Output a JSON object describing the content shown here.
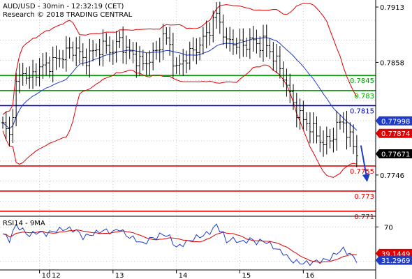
{
  "chart_data": [
    {
      "type": "candlestick",
      "title": "AUD/USD - 30min - 12:32:19 (CET)",
      "subtitle": "Research © 2018 TRADING CENTRAL",
      "ylim": [
        0.7705,
        0.792
      ],
      "y_ticks": [
        {
          "value": 0.7913,
          "label": "0.7913"
        },
        {
          "value": 0.7858,
          "label": "0.7858"
        },
        {
          "value": 0.7746,
          "label": "0.7746"
        }
      ],
      "x_ticks": [
        "10",
        "12",
        "13",
        "14",
        "15",
        "16"
      ],
      "levels": [
        {
          "value": 0.7845,
          "label": "0.7845",
          "color": "#00a000"
        },
        {
          "value": 0.783,
          "label": "0.783",
          "color": "#00a000"
        },
        {
          "value": 0.7815,
          "label": "0.7815",
          "color": "#0000c8"
        },
        {
          "value": 0.7755,
          "label": "0.7755",
          "color": "#e00000"
        },
        {
          "value": 0.773,
          "label": "0.773",
          "color": "#e00000"
        },
        {
          "value": 0.771,
          "label": "0.771",
          "color": "#e00000"
        }
      ],
      "price_tags": [
        {
          "value": 0.77998,
          "label": "0.77998",
          "color": "#1e3cc8"
        },
        {
          "value": 0.77874,
          "label": "0.77874",
          "color": "#e00000"
        },
        {
          "value": 0.77671,
          "label": "0.77671",
          "color": "#000000"
        }
      ],
      "colors": {
        "bollinger": "#e00000",
        "moving_average": "#1e3cc8",
        "forecast_arrow": "#1e3cc8"
      },
      "forecast": {
        "from": 0.7767,
        "to": 0.7746
      },
      "price_path": [
        [
          0,
          0.7795
        ],
        [
          2,
          0.7785
        ],
        [
          4,
          0.7835
        ],
        [
          6,
          0.785
        ],
        [
          8,
          0.784
        ],
        [
          10,
          0.785
        ],
        [
          13,
          0.7855
        ],
        [
          16,
          0.786
        ],
        [
          19,
          0.7868
        ],
        [
          22,
          0.7872
        ],
        [
          24,
          0.786
        ],
        [
          27,
          0.7868
        ],
        [
          30,
          0.7874
        ],
        [
          33,
          0.787
        ],
        [
          35,
          0.788
        ],
        [
          37,
          0.787
        ],
        [
          40,
          0.7862
        ],
        [
          42,
          0.7855
        ],
        [
          44,
          0.7862
        ],
        [
          46,
          0.7868
        ],
        [
          48,
          0.7885
        ],
        [
          50,
          0.7874
        ],
        [
          52,
          0.785
        ],
        [
          54,
          0.786
        ],
        [
          56,
          0.7866
        ],
        [
          58,
          0.7872
        ],
        [
          60,
          0.788
        ],
        [
          62,
          0.7892
        ],
        [
          64,
          0.7905
        ],
        [
          66,
          0.789
        ],
        [
          67,
          0.7875
        ],
        [
          68,
          0.788
        ],
        [
          70,
          0.7876
        ],
        [
          72,
          0.7874
        ],
        [
          74,
          0.788
        ],
        [
          76,
          0.7876
        ],
        [
          78,
          0.7878
        ],
        [
          80,
          0.787
        ],
        [
          82,
          0.7858
        ],
        [
          84,
          0.7845
        ],
        [
          86,
          0.7825
        ],
        [
          88,
          0.781
        ],
        [
          90,
          0.78
        ],
        [
          92,
          0.7795
        ],
        [
          94,
          0.7785
        ],
        [
          96,
          0.7778
        ],
        [
          98,
          0.778
        ],
        [
          100,
          0.7795
        ],
        [
          102,
          0.7798
        ],
        [
          104,
          0.7782
        ],
        [
          106,
          0.7767
        ]
      ]
    },
    {
      "type": "line",
      "title": "RSI14 - 9MA",
      "ylim": [
        20,
        80
      ],
      "y_ticks": [
        {
          "value": 70,
          "label": "70"
        }
      ],
      "x_ticks": [
        "10",
        "12",
        "13",
        "14",
        "15",
        "16"
      ],
      "price_tags": [
        {
          "value": 39.1449,
          "label": "39.1449",
          "color": "#e00000"
        },
        {
          "value": 31.2969,
          "label": "31.2969",
          "color": "#1e3cc8"
        }
      ],
      "series": [
        {
          "values": [
            [
              0,
              62
            ],
            [
              2,
              55
            ],
            [
              4,
              72
            ],
            [
              6,
              66
            ],
            [
              8,
              60
            ],
            [
              10,
              64
            ],
            [
              13,
              62
            ],
            [
              16,
              66
            ],
            [
              19,
              68
            ],
            [
              22,
              66
            ],
            [
              24,
              58
            ],
            [
              27,
              62
            ],
            [
              30,
              66
            ],
            [
              33,
              64
            ],
            [
              35,
              68
            ],
            [
              37,
              60
            ],
            [
              40,
              55
            ],
            [
              42,
              50
            ],
            [
              44,
              56
            ],
            [
              46,
              58
            ],
            [
              48,
              62
            ],
            [
              50,
              58
            ],
            [
              52,
              46
            ],
            [
              54,
              50
            ],
            [
              56,
              54
            ],
            [
              58,
              58
            ],
            [
              60,
              60
            ],
            [
              62,
              64
            ],
            [
              64,
              72
            ],
            [
              66,
              62
            ],
            [
              67,
              52
            ],
            [
              68,
              56
            ],
            [
              70,
              54
            ],
            [
              72,
              52
            ],
            [
              74,
              56
            ],
            [
              76,
              52
            ],
            [
              78,
              54
            ],
            [
              80,
              50
            ],
            [
              82,
              44
            ],
            [
              84,
              40
            ],
            [
              86,
              32
            ],
            [
              88,
              29
            ],
            [
              90,
              28
            ],
            [
              92,
              28
            ],
            [
              94,
              30
            ],
            [
              96,
              31
            ],
            [
              98,
              33
            ],
            [
              100,
              40
            ],
            [
              102,
              44
            ],
            [
              104,
              38
            ],
            [
              106,
              31.3
            ]
          ]
        }
      ]
    }
  ]
}
